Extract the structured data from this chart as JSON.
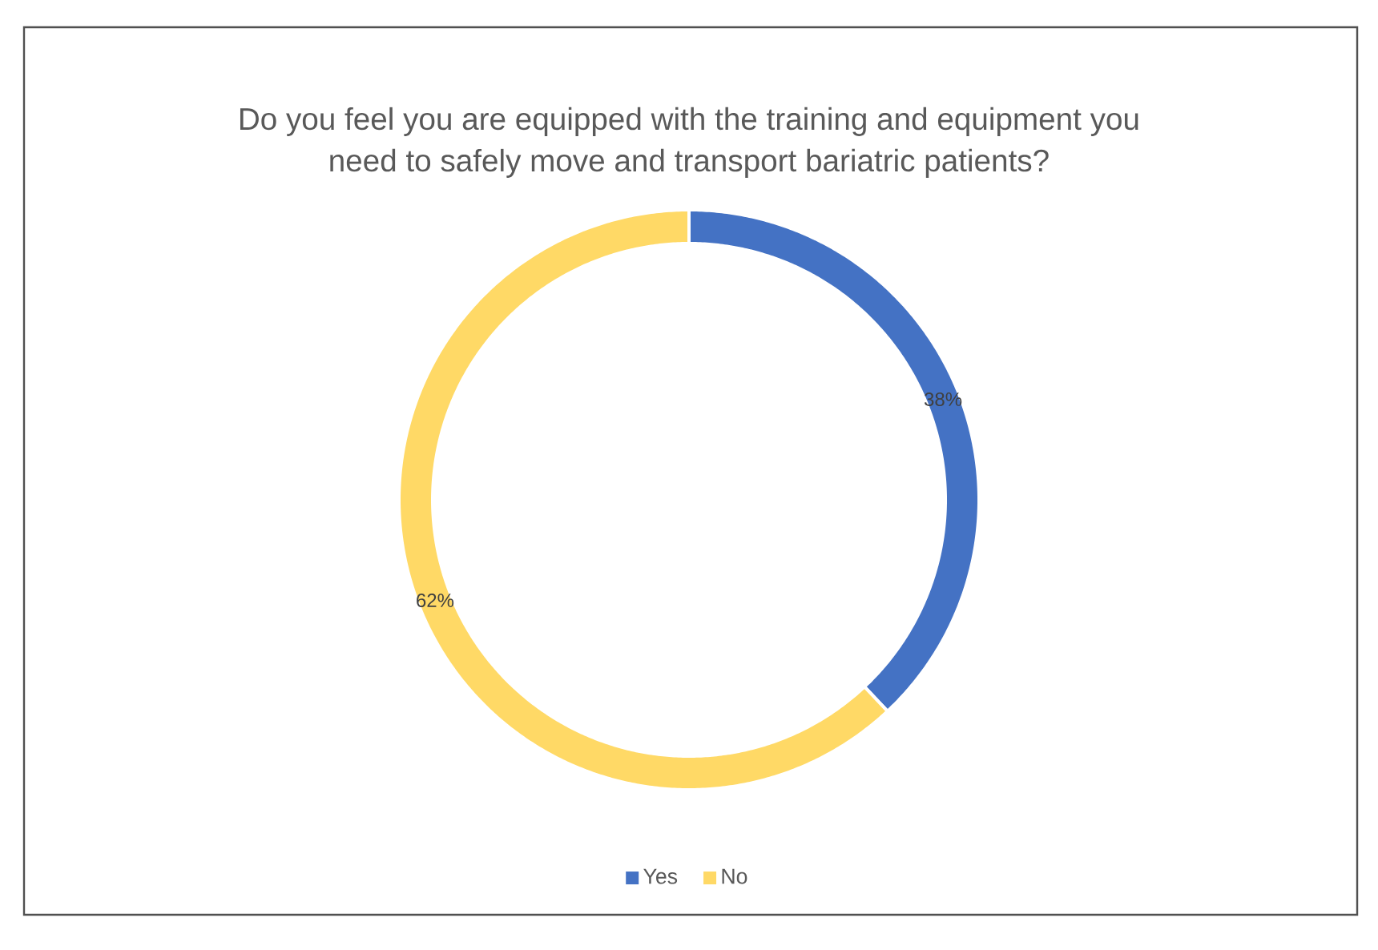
{
  "chart_data": {
    "type": "donut",
    "title": "Do you feel you are equipped with the training and equipment you need to safely move and transport bariatric patients?",
    "categories": [
      "Yes",
      "No"
    ],
    "values": [
      38,
      62
    ],
    "colors": [
      "#4472c4",
      "#ffd966"
    ],
    "value_labels": [
      "38%",
      "62%"
    ],
    "legend": "bottom"
  }
}
